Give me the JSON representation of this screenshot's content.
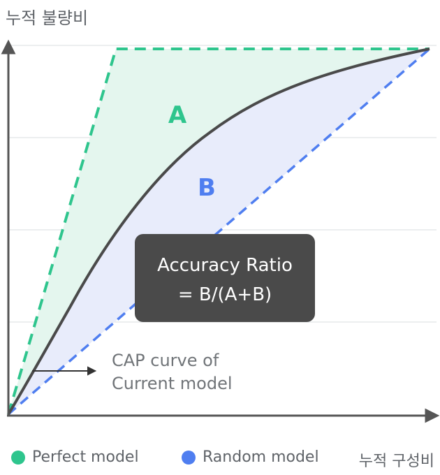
{
  "y_axis_title": "누적 불량비",
  "x_axis_title": "누적 구성비",
  "region_a_label": "A",
  "region_b_label": "B",
  "ratio_box": {
    "line1": "Accuracy Ratio",
    "line2": "= B/(A+B)"
  },
  "cap_annotation": {
    "line1": "CAP curve of",
    "line2": "Current model"
  },
  "legend": [
    {
      "label": "Perfect model",
      "color": "#2ec58d"
    },
    {
      "label": "Random model",
      "color": "#4f7ef0"
    }
  ],
  "colors": {
    "perfect": "#2ec58d",
    "random": "#4f7ef0",
    "curve": "#4a4a4a",
    "fill_a": "#e4f6ee",
    "fill_b": "#e8ecfb",
    "box": "#4a4a4a"
  }
}
